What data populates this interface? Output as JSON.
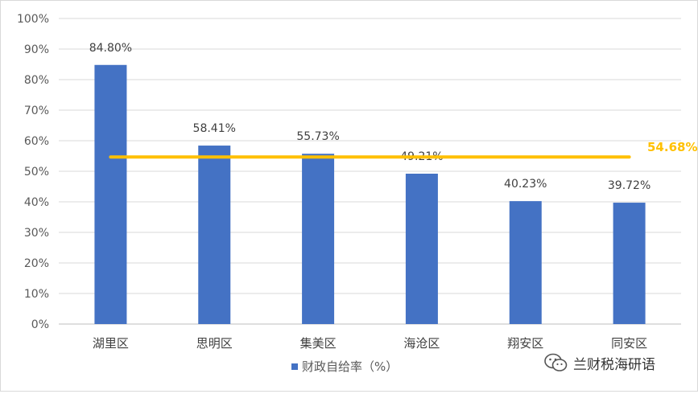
{
  "chart_data": {
    "type": "bar",
    "categories": [
      "湖里区",
      "思明区",
      "集美区",
      "海沧区",
      "翔安区",
      "同安区"
    ],
    "series": [
      {
        "name": "财政自给率（%）",
        "values": [
          84.8,
          58.41,
          55.73,
          49.21,
          40.23,
          39.72
        ],
        "labels": [
          "84.80%",
          "58.41%",
          "55.73%",
          "49.21%",
          "40.23%",
          "39.72%"
        ],
        "color": "#4472c4"
      }
    ],
    "reference_line": {
      "value": 54.68,
      "label": "54.68%",
      "color": "#ffc000"
    },
    "y_ticks": [
      "0%",
      "10%",
      "20%",
      "30%",
      "40%",
      "50%",
      "60%",
      "70%",
      "80%",
      "90%",
      "100%"
    ],
    "ylim": [
      0,
      100
    ],
    "grid": true,
    "legend_position": "bottom"
  },
  "watermark": {
    "text": "兰财税海研语",
    "icon": "wechat-icon"
  }
}
